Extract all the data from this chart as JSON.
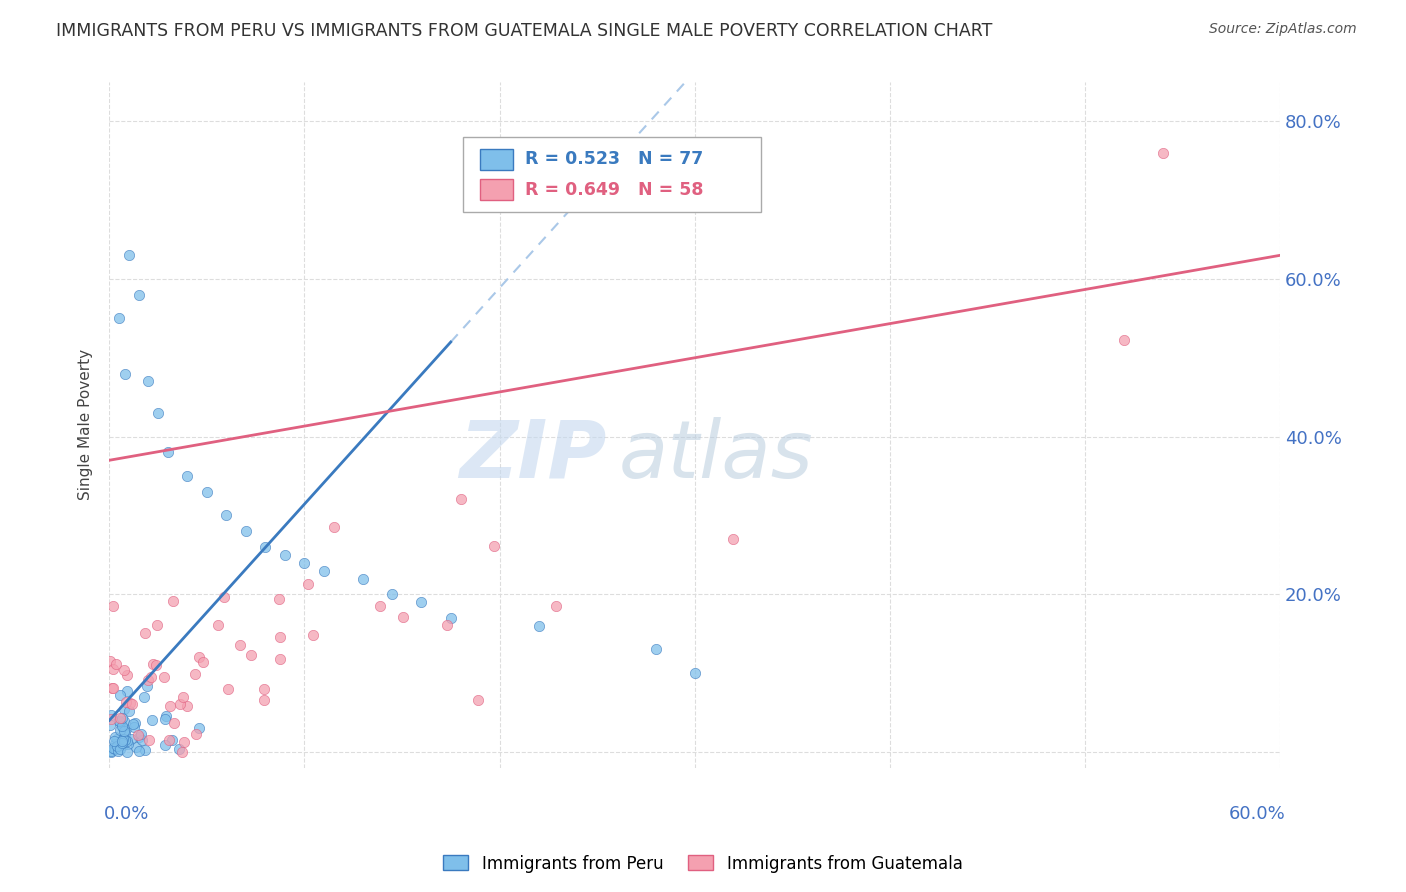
{
  "title": "IMMIGRANTS FROM PERU VS IMMIGRANTS FROM GUATEMALA SINGLE MALE POVERTY CORRELATION CHART",
  "source": "Source: ZipAtlas.com",
  "legend1_label": "Immigrants from Peru",
  "legend2_label": "Immigrants from Guatemala",
  "r1": 0.523,
  "n1": 77,
  "r2": 0.649,
  "n2": 58,
  "color1": "#7fbfea",
  "color2": "#f4a0b0",
  "trendline1_color": "#3a7abf",
  "trendline2_color": "#e06080",
  "trendline1_dashed_color": "#aac8e8",
  "watermark_zip": "ZIP",
  "watermark_atlas": "atlas",
  "watermark_color_zip": "#c0d8f0",
  "watermark_color_atlas": "#b0c8e8",
  "ylabel": "Single Male Poverty",
  "xlim": [
    0.0,
    0.6
  ],
  "ylim": [
    -0.02,
    0.85
  ],
  "background_color": "#ffffff",
  "grid_color": "#dddddd",
  "ytick_color": "#4472c4",
  "xtick_color": "#4472c4"
}
